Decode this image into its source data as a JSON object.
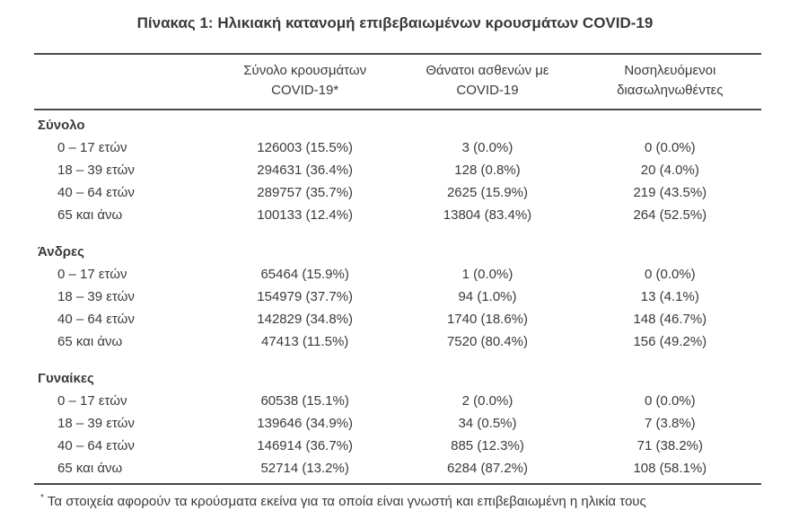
{
  "title": "Πίνακας 1: Ηλικιακή κατανομή επιβεβαιωμένων κρουσμάτων COVID-19",
  "colors": {
    "text": "#3a3a3a",
    "border": "#4a4a4a",
    "background": "#ffffff"
  },
  "table": {
    "columns": [
      {
        "line1": "Σύνολο κρουσμάτων",
        "line2": "COVID-19*"
      },
      {
        "line1": "Θάνατοι ασθενών με",
        "line2": "COVID-19"
      },
      {
        "line1": "Νοσηλευόμενοι",
        "line2": "διασωληνωθέντες"
      }
    ],
    "sections": [
      {
        "label": "Σύνολο",
        "rows": [
          {
            "label": "0 – 17 ετών",
            "cases": "126003 (15.5%)",
            "deaths": "3 (0.0%)",
            "intubated": "0 (0.0%)"
          },
          {
            "label": "18 – 39 ετών",
            "cases": "294631 (36.4%)",
            "deaths": "128 (0.8%)",
            "intubated": "20 (4.0%)"
          },
          {
            "label": "40 – 64 ετών",
            "cases": "289757 (35.7%)",
            "deaths": "2625 (15.9%)",
            "intubated": "219 (43.5%)"
          },
          {
            "label": "65 και άνω",
            "cases": "100133 (12.4%)",
            "deaths": "13804 (83.4%)",
            "intubated": "264 (52.5%)"
          }
        ]
      },
      {
        "label": "Άνδρες",
        "rows": [
          {
            "label": "0 – 17 ετών",
            "cases": "65464 (15.9%)",
            "deaths": "1 (0.0%)",
            "intubated": "0 (0.0%)"
          },
          {
            "label": "18 – 39 ετών",
            "cases": "154979 (37.7%)",
            "deaths": "94 (1.0%)",
            "intubated": "13 (4.1%)"
          },
          {
            "label": "40 – 64 ετών",
            "cases": "142829 (34.8%)",
            "deaths": "1740 (18.6%)",
            "intubated": "148 (46.7%)"
          },
          {
            "label": "65 και άνω",
            "cases": "47413 (11.5%)",
            "deaths": "7520 (80.4%)",
            "intubated": "156 (49.2%)"
          }
        ]
      },
      {
        "label": "Γυναίκες",
        "rows": [
          {
            "label": "0 – 17 ετών",
            "cases": "60538 (15.1%)",
            "deaths": "2 (0.0%)",
            "intubated": "0 (0.0%)"
          },
          {
            "label": "18 – 39 ετών",
            "cases": "139646 (34.9%)",
            "deaths": "34 (0.5%)",
            "intubated": "7 (3.8%)"
          },
          {
            "label": "40 – 64 ετών",
            "cases": "146914 (36.7%)",
            "deaths": "885 (12.3%)",
            "intubated": "71 (38.2%)"
          },
          {
            "label": "65 και άνω",
            "cases": "52714 (13.2%)",
            "deaths": "6284 (87.2%)",
            "intubated": "108 (58.1%)"
          }
        ]
      }
    ]
  },
  "footnote": {
    "marker": "*",
    "text": "Τα στοιχεία αφορούν τα κρούσματα εκείνα για τα οποία είναι γνωστή και επιβεβαιωμένη η ηλικία τους"
  }
}
